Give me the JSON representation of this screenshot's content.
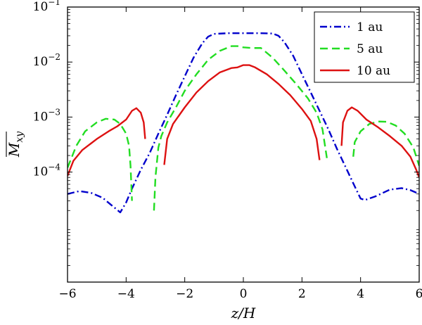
{
  "chart_data": {
    "type": "line",
    "xlabel": "z/H",
    "ylabel": "M_xy",
    "xlim": [
      -6,
      6
    ],
    "ylim": [
      1e-06,
      0.1
    ],
    "y_scale": "log",
    "grid": false,
    "legend_position": "top-right",
    "x_ticks": [
      -6,
      -4,
      -2,
      0,
      2,
      4,
      6
    ],
    "x_tick_labels": [
      "−6",
      "−4",
      "−2",
      "0",
      "2",
      "4",
      "6"
    ],
    "y_ticks": [
      0.0001,
      0.001,
      0.01,
      0.1
    ],
    "y_tick_labels": [
      {
        "base": "10",
        "exp": "−4"
      },
      {
        "base": "10",
        "exp": "−3"
      },
      {
        "base": "10",
        "exp": "−2"
      },
      {
        "base": "10",
        "exp": "−1"
      }
    ],
    "series": [
      {
        "name": "1 au",
        "color": "#0000cc",
        "dash": "dashdot",
        "segments": [
          [
            [
              -6.0,
              4e-05
            ],
            [
              -5.6,
              4.5e-05
            ],
            [
              -5.2,
              4.2e-05
            ],
            [
              -4.8,
              3.4e-05
            ],
            [
              -4.5,
              2.5e-05
            ],
            [
              -4.2,
              1.85e-05
            ],
            [
              -4.0,
              2.8e-05
            ],
            [
              -3.8,
              5e-05
            ],
            [
              -3.5,
              0.00011
            ],
            [
              -3.2,
              0.00022
            ],
            [
              -2.9,
              0.0005
            ],
            [
              -2.6,
              0.0011
            ],
            [
              -2.3,
              0.0025
            ],
            [
              -2.0,
              0.0055
            ],
            [
              -1.7,
              0.012
            ],
            [
              -1.4,
              0.022
            ],
            [
              -1.2,
              0.029
            ],
            [
              -1.0,
              0.0325
            ],
            [
              -0.5,
              0.0335
            ],
            [
              0.0,
              0.0335
            ],
            [
              0.5,
              0.0335
            ],
            [
              1.0,
              0.033
            ],
            [
              1.2,
              0.03
            ],
            [
              1.4,
              0.023
            ],
            [
              1.7,
              0.013
            ],
            [
              2.0,
              0.006
            ],
            [
              2.3,
              0.0028
            ],
            [
              2.6,
              0.0013
            ],
            [
              2.9,
              0.0006
            ],
            [
              3.2,
              0.00026
            ],
            [
              3.5,
              0.00012
            ],
            [
              3.8,
              5.5e-05
            ],
            [
              4.0,
              3.3e-05
            ],
            [
              4.15,
              3.1e-05
            ],
            [
              4.5,
              3.6e-05
            ],
            [
              5.0,
              4.8e-05
            ],
            [
              5.4,
              5.1e-05
            ],
            [
              5.7,
              4.7e-05
            ],
            [
              6.0,
              4e-05
            ]
          ]
        ]
      },
      {
        "name": "5 au",
        "color": "#22dd22",
        "dash": "dashed",
        "segments": [
          [
            [
              -6.0,
              0.00012
            ],
            [
              -5.7,
              0.0003
            ],
            [
              -5.4,
              0.00055
            ],
            [
              -5.0,
              0.0008
            ],
            [
              -4.7,
              0.00093
            ],
            [
              -4.4,
              0.0009
            ],
            [
              -4.2,
              0.00075
            ],
            [
              -4.0,
              0.0005
            ],
            [
              -3.9,
              0.0003
            ],
            [
              -3.85,
              0.00013
            ],
            [
              -3.8,
              3e-05
            ]
          ],
          [
            [
              -3.05,
              2e-05
            ],
            [
              -3.0,
              8e-05
            ],
            [
              -2.9,
              0.00028
            ],
            [
              -2.8,
              0.00045
            ],
            [
              -2.6,
              0.0008
            ],
            [
              -2.3,
              0.0015
            ],
            [
              -2.0,
              0.003
            ],
            [
              -1.6,
              0.006
            ],
            [
              -1.2,
              0.011
            ],
            [
              -0.8,
              0.016
            ],
            [
              -0.4,
              0.0195
            ],
            [
              -0.2,
              0.0195
            ],
            [
              0.0,
              0.0185
            ],
            [
              0.3,
              0.018
            ],
            [
              0.6,
              0.018
            ],
            [
              1.0,
              0.012
            ],
            [
              1.4,
              0.007
            ],
            [
              1.8,
              0.004
            ],
            [
              2.2,
              0.0022
            ],
            [
              2.5,
              0.0012
            ],
            [
              2.7,
              0.0006
            ],
            [
              2.85,
              0.00018
            ]
          ],
          [
            [
              3.75,
              0.00019
            ],
            [
              3.8,
              0.00035
            ],
            [
              4.0,
              0.00055
            ],
            [
              4.3,
              0.00075
            ],
            [
              4.6,
              0.00083
            ],
            [
              4.9,
              0.00082
            ],
            [
              5.2,
              0.0007
            ],
            [
              5.5,
              0.0005
            ],
            [
              5.8,
              0.00028
            ],
            [
              6.0,
              0.00013
            ]
          ]
        ]
      },
      {
        "name": "10 au",
        "color": "#dd1111",
        "dash": "solid",
        "segments": [
          [
            [
              -6.0,
              8.5e-05
            ],
            [
              -5.8,
              0.00016
            ],
            [
              -5.5,
              0.00025
            ],
            [
              -5.0,
              0.0004
            ],
            [
              -4.6,
              0.00055
            ],
            [
              -4.3,
              0.00068
            ],
            [
              -4.0,
              0.0009
            ],
            [
              -3.8,
              0.0013
            ],
            [
              -3.65,
              0.00145
            ],
            [
              -3.5,
              0.0012
            ],
            [
              -3.4,
              0.0008
            ],
            [
              -3.35,
              0.0004
            ]
          ],
          [
            [
              -2.7,
              0.000135
            ],
            [
              -2.6,
              0.0004
            ],
            [
              -2.4,
              0.00075
            ],
            [
              -2.0,
              0.0015
            ],
            [
              -1.6,
              0.0028
            ],
            [
              -1.2,
              0.0045
            ],
            [
              -0.8,
              0.0065
            ],
            [
              -0.4,
              0.0078
            ],
            [
              -0.2,
              0.008
            ],
            [
              0.0,
              0.0088
            ],
            [
              0.2,
              0.0088
            ],
            [
              0.4,
              0.008
            ],
            [
              0.8,
              0.006
            ],
            [
              1.2,
              0.004
            ],
            [
              1.6,
              0.0025
            ],
            [
              2.0,
              0.0014
            ],
            [
              2.3,
              0.00085
            ],
            [
              2.5,
              0.0004
            ],
            [
              2.6,
              0.000165
            ]
          ],
          [
            [
              3.35,
              0.0003
            ],
            [
              3.4,
              0.0008
            ],
            [
              3.55,
              0.0013
            ],
            [
              3.7,
              0.0015
            ],
            [
              3.9,
              0.0013
            ],
            [
              4.2,
              0.0009
            ],
            [
              4.6,
              0.00065
            ],
            [
              5.0,
              0.00045
            ],
            [
              5.4,
              0.0003
            ],
            [
              5.7,
              0.00019
            ],
            [
              5.9,
              0.00011
            ],
            [
              6.0,
              8e-05
            ]
          ]
        ]
      }
    ]
  }
}
